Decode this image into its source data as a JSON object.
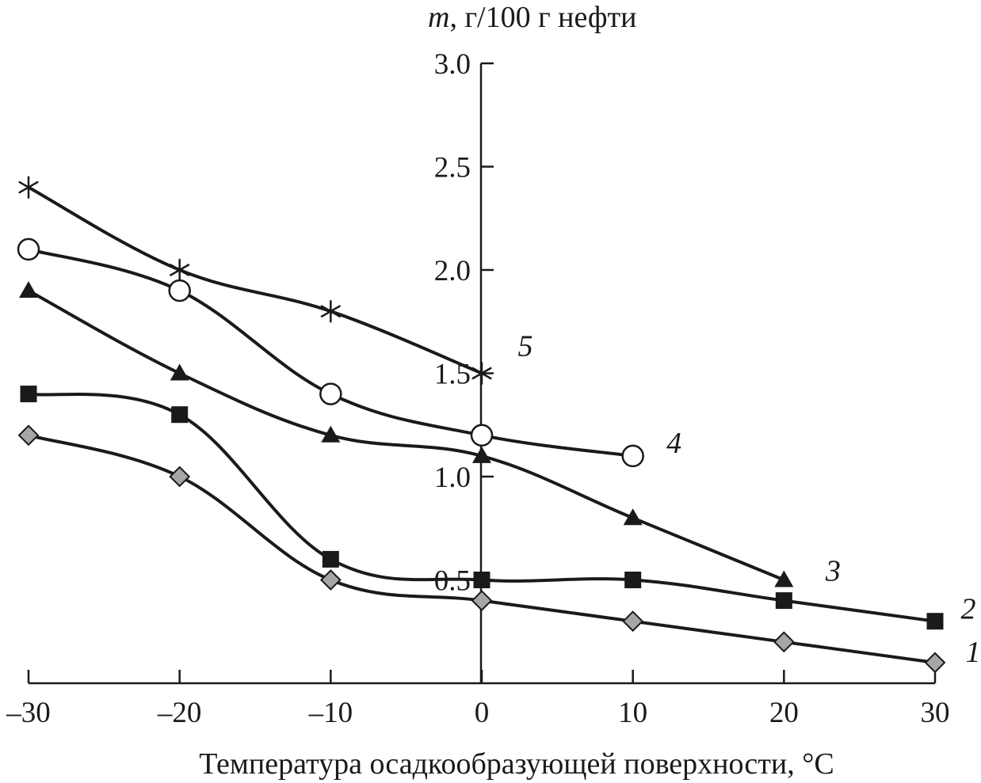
{
  "chart_data": {
    "type": "line",
    "xlabel": "Температура осадкообразующей поверхности, °C",
    "ylabel_var": "m",
    "ylabel_rest": ", г/100 г нефти",
    "xlim": [
      -30,
      30
    ],
    "ylim": [
      0,
      3.0
    ],
    "xticks": [
      -30,
      -20,
      -10,
      0,
      10,
      20,
      30
    ],
    "xtick_labels": [
      "–30",
      "–20",
      "–10",
      "0",
      "10",
      "20",
      "30"
    ],
    "yticks": [
      0.5,
      1.0,
      1.5,
      2.0,
      2.5,
      3.0
    ],
    "ytick_labels": [
      "0.5",
      "1.0",
      "1.5",
      "2.0",
      "2.5",
      "3.0"
    ],
    "grid": false,
    "series": [
      {
        "name": "1",
        "marker": "diamond-gray",
        "x": [
          -30,
          -20,
          -10,
          0,
          10,
          20,
          30
        ],
        "y": [
          1.2,
          1.0,
          0.5,
          0.4,
          0.3,
          0.2,
          0.1
        ]
      },
      {
        "name": "2",
        "marker": "square-filled",
        "x": [
          -30,
          -20,
          -10,
          0,
          10,
          20,
          30
        ],
        "y": [
          1.4,
          1.3,
          0.6,
          0.5,
          0.5,
          0.4,
          0.3
        ]
      },
      {
        "name": "3",
        "marker": "triangle-filled",
        "x": [
          -30,
          -20,
          -10,
          0,
          10,
          20
        ],
        "y": [
          1.9,
          1.5,
          1.2,
          1.1,
          0.8,
          0.5
        ]
      },
      {
        "name": "4",
        "marker": "circle-open",
        "x": [
          -30,
          -20,
          -10,
          0,
          10
        ],
        "y": [
          2.1,
          1.9,
          1.4,
          1.2,
          1.1
        ]
      },
      {
        "name": "5",
        "marker": "asterisk",
        "x": [
          -30,
          -20,
          -10,
          0
        ],
        "y": [
          2.4,
          2.0,
          1.8,
          1.5
        ]
      }
    ],
    "marker_fill_gray": "#a6a6a6",
    "ink_color": "#1a1a1a"
  }
}
